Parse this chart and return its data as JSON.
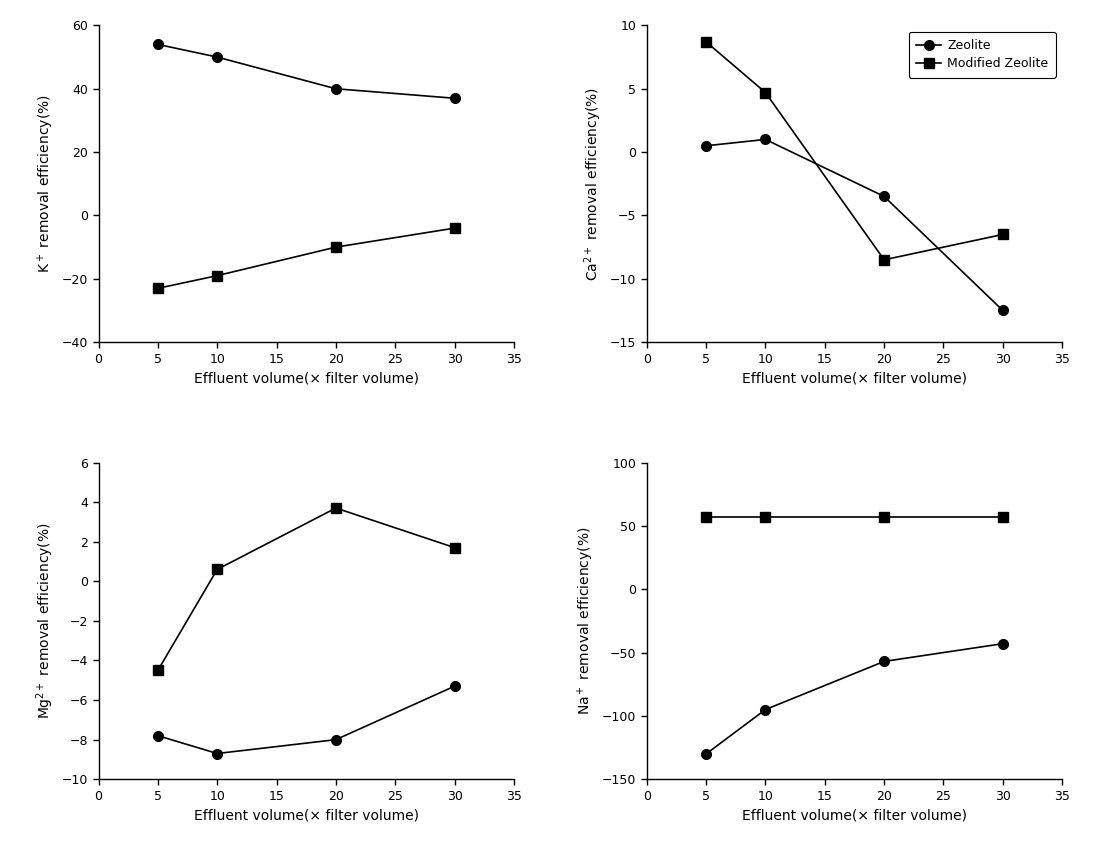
{
  "x": [
    5,
    10,
    20,
    30
  ],
  "K_zeolite": [
    54,
    50,
    40,
    37
  ],
  "K_modified": [
    -23,
    -19,
    -10,
    -4
  ],
  "Ca_zeolite": [
    0.5,
    1.0,
    -3.5,
    -12.5
  ],
  "Ca_modified": [
    8.7,
    4.7,
    -8.5,
    -6.5
  ],
  "Mg_zeolite": [
    -7.8,
    -8.7,
    -8.0,
    -5.3
  ],
  "Mg_modified": [
    -4.5,
    0.6,
    3.7,
    1.7
  ],
  "Na_zeolite": [
    -130,
    -95,
    -57,
    -43
  ],
  "Na_modified": [
    57,
    57,
    57,
    57
  ],
  "K_ylabel": "K$^+$ removal efficiency(%)",
  "Ca_ylabel": "Ca$^{2+}$ removal efficiency(%)",
  "Mg_ylabel": "Mg$^{2+}$ removal efficiency(%)",
  "Na_ylabel": "Na$^+$ removal efficiency(%)",
  "xlabel": "Effluent volume(× filter volume)",
  "K_ylim": [
    -40,
    60
  ],
  "Ca_ylim": [
    -15,
    10
  ],
  "Mg_ylim": [
    -10,
    6
  ],
  "Na_ylim": [
    -150,
    100
  ],
  "K_yticks": [
    -40,
    -20,
    0,
    20,
    40,
    60
  ],
  "Ca_yticks": [
    -15,
    -10,
    -5,
    0,
    5,
    10
  ],
  "Mg_yticks": [
    -10,
    -8,
    -6,
    -4,
    -2,
    0,
    2,
    4,
    6
  ],
  "Na_yticks": [
    -150,
    -100,
    -50,
    0,
    50,
    100
  ],
  "xlim": [
    0,
    35
  ],
  "xticks": [
    0,
    5,
    10,
    15,
    20,
    25,
    30,
    35
  ],
  "legend_zeolite": "Zeolite",
  "legend_modified": "Modified Zeolite",
  "line_color": "#000000",
  "marker_circle": "o",
  "marker_square": "s",
  "markersize": 7,
  "linewidth": 1.2,
  "fontsize_label": 10,
  "fontsize_tick": 9,
  "fontsize_legend": 9
}
